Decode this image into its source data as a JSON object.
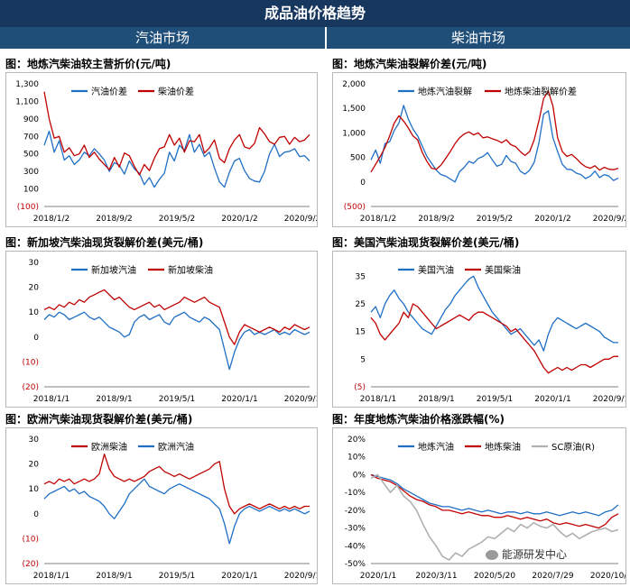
{
  "header": {
    "title": "成品油价格趋势",
    "left": "汽油市场",
    "right": "柴油市场"
  },
  "charts": [
    {
      "title": "图：地炼汽柴油较主营折价(元/吨)",
      "chart_data": {
        "type": "line",
        "ylim": [
          -100,
          1300
        ],
        "yticks": [
          "1,300",
          "1,100",
          "900",
          "700",
          "500",
          "300",
          "100",
          "(100)"
        ],
        "ytick_values": [
          1300,
          1100,
          900,
          700,
          500,
          300,
          100,
          -100
        ],
        "xtick_labels": [
          "2018/1/2",
          "2018/9/2",
          "2019/5/2",
          "2020/1/2",
          "2020/9/2"
        ],
        "legend": "top",
        "series": [
          {
            "name": "汽油价差",
            "color": "#1F6FC5",
            "values": [
              600,
              760,
              520,
              650,
              430,
              480,
              380,
              430,
              520,
              480,
              560,
              500,
              430,
              300,
              400,
              370,
              270,
              420,
              330,
              280,
              150,
              230,
              120,
              210,
              280,
              520,
              420,
              600,
              540,
              720,
              520,
              610,
              470,
              520,
              340,
              180,
              120,
              290,
              420,
              450,
              310,
              220,
              190,
              180,
              300,
              500,
              610,
              470,
              520,
              530,
              560,
              470,
              480,
              420
            ]
          },
          {
            "name": "柴油价差",
            "color": "#C00000",
            "values": [
              1210,
              900,
              680,
              700,
              520,
              570,
              480,
              500,
              600,
              460,
              520,
              440,
              380,
              320,
              460,
              350,
              510,
              480,
              360,
              260,
              380,
              310,
              450,
              560,
              580,
              720,
              600,
              680,
              520,
              650,
              640,
              720,
              510,
              570,
              660,
              450,
              400,
              560,
              660,
              720,
              580,
              560,
              620,
              800,
              730,
              640,
              610,
              690,
              700,
              610,
              690,
              640,
              660,
              720
            ]
          }
        ]
      }
    },
    {
      "title": "图：地炼汽柴油裂解价差(元/吨)",
      "chart_data": {
        "type": "line",
        "ylim": [
          -500,
          2000
        ],
        "yticks": [
          "2,000",
          "1,500",
          "1,000",
          "500",
          "0",
          "(500)"
        ],
        "ytick_values": [
          2000,
          1500,
          1000,
          500,
          0,
          -500
        ],
        "xtick_labels": [
          "2018/1/2",
          "2018/9/2",
          "2019/5/2",
          "2020/1/2",
          "2020/9/2"
        ],
        "legend": "top",
        "series": [
          {
            "name": "地炼汽油裂解",
            "color": "#1F6FC5",
            "values": [
              450,
              650,
              380,
              780,
              820,
              1050,
              1200,
              1560,
              1280,
              1080,
              940,
              730,
              520,
              380,
              240,
              150,
              120,
              60,
              0,
              210,
              300,
              420,
              380,
              480,
              520,
              600,
              450,
              320,
              360,
              540,
              420,
              380,
              220,
              160,
              240,
              400,
              800,
              1380,
              1450,
              900,
              620,
              360,
              260,
              250,
              180,
              150,
              70,
              120,
              220,
              90,
              150,
              120,
              30,
              80
            ]
          },
          {
            "name": "地炼柴油裂解价差",
            "color": "#C00000",
            "values": [
              200,
              360,
              520,
              700,
              940,
              1200,
              1350,
              1240,
              1100,
              940,
              860,
              600,
              420,
              280,
              260,
              340,
              480,
              620,
              780,
              900,
              980,
              1020,
              960,
              1000,
              900,
              920,
              880,
              850,
              800,
              860,
              760,
              720,
              620,
              540,
              620,
              860,
              1250,
              1700,
              1850,
              1550,
              900,
              620,
              520,
              560,
              480,
              380,
              310,
              280,
              330,
              240,
              300,
              260,
              250,
              280
            ]
          }
        ]
      }
    },
    {
      "title": "图：新加坡汽柴油现货裂解价差(美元/桶)",
      "chart_data": {
        "type": "line",
        "ylim": [
          -20,
          30
        ],
        "yticks": [
          "30",
          "20",
          "10",
          "0",
          "(10)",
          "(20)"
        ],
        "ytick_values": [
          30,
          20,
          10,
          0,
          -10,
          -20
        ],
        "xtick_labels": [
          "2018/1/1",
          "2018/9/1",
          "2019/5/1",
          "2020/1/1",
          "2020/9/1"
        ],
        "legend": "top",
        "series": [
          {
            "name": "新加坡汽油",
            "color": "#1F6FC5",
            "values": [
              7,
              9,
              8,
              10,
              9,
              7,
              8,
              9,
              10,
              8,
              7,
              8,
              6,
              4,
              3,
              2,
              0,
              1,
              6,
              8,
              9,
              7,
              8,
              9,
              6,
              5,
              8,
              9,
              10,
              8,
              7,
              6,
              8,
              7,
              5,
              3,
              -5,
              -13,
              -6,
              -1,
              2,
              3,
              1,
              2,
              1,
              2,
              3,
              1,
              2,
              1,
              3,
              2,
              1,
              2
            ]
          },
          {
            "name": "新加坡柴油",
            "color": "#C00000",
            "values": [
              11,
              12,
              11,
              13,
              12,
              14,
              13,
              15,
              14,
              16,
              17,
              18,
              19,
              17,
              15,
              16,
              14,
              12,
              11,
              12,
              13,
              14,
              12,
              13,
              11,
              12,
              13,
              14,
              16,
              15,
              14,
              15,
              16,
              14,
              13,
              12,
              6,
              0,
              -3,
              2,
              5,
              4,
              3,
              2,
              3,
              4,
              3,
              2,
              4,
              3,
              5,
              4,
              3,
              4
            ]
          }
        ]
      }
    },
    {
      "title": "图：美国汽柴油现货裂解价差(美元/桶)",
      "chart_data": {
        "type": "line",
        "ylim": [
          -5,
          40
        ],
        "yticks": [
          "35",
          "25",
          "15",
          "5",
          "(5)"
        ],
        "ytick_values": [
          35,
          25,
          15,
          5,
          -5
        ],
        "xtick_labels": [
          "2018/1/1",
          "2018/9/1",
          "2019/5/1",
          "2020/1/1",
          "2020/9/1"
        ],
        "legend": "top",
        "series": [
          {
            "name": "美国汽油",
            "color": "#1F6FC5",
            "values": [
              22,
              24,
              20,
              25,
              28,
              30,
              27,
              25,
              22,
              20,
              18,
              16,
              15,
              14,
              17,
              20,
              23,
              25,
              28,
              30,
              32,
              34,
              35,
              31,
              28,
              25,
              22,
              20,
              18,
              16,
              14,
              15,
              16,
              14,
              12,
              10,
              12,
              8,
              14,
              18,
              20,
              19,
              18,
              17,
              16,
              17,
              18,
              17,
              16,
              15,
              13,
              12,
              11,
              11
            ]
          },
          {
            "name": "美国柴油",
            "color": "#C00000",
            "values": [
              20,
              18,
              14,
              12,
              14,
              16,
              18,
              22,
              20,
              25,
              24,
              22,
              20,
              18,
              16,
              17,
              18,
              19,
              20,
              21,
              20,
              19,
              21,
              22,
              22,
              21,
              20,
              19,
              18,
              17,
              15,
              16,
              14,
              12,
              10,
              8,
              5,
              2,
              0,
              1,
              2,
              1,
              2,
              1,
              2,
              3,
              3,
              2,
              3,
              4,
              5,
              5,
              6,
              6
            ]
          }
        ]
      }
    },
    {
      "title": "图：欧洲汽柴油现货裂解价差(美元/桶)",
      "chart_data": {
        "type": "line",
        "ylim": [
          -20,
          30
        ],
        "yticks": [
          "30",
          "20",
          "10",
          "0",
          "(10)",
          "(20)"
        ],
        "ytick_values": [
          30,
          20,
          10,
          0,
          -10,
          -20
        ],
        "xtick_labels": [
          "2018/1/1",
          "2018/9/1",
          "2019/5/1",
          "2020/1/1",
          "2020/9/1"
        ],
        "legend": "top",
        "series": [
          {
            "name": "欧洲柴油",
            "color": "#C00000",
            "values": [
              12,
              13,
              12,
              14,
              13,
              14,
              12,
              13,
              14,
              13,
              14,
              16,
              24,
              18,
              15,
              14,
              13,
              14,
              13,
              14,
              15,
              17,
              18,
              19,
              17,
              16,
              15,
              16,
              15,
              14,
              15,
              16,
              17,
              18,
              20,
              21,
              10,
              3,
              0,
              2,
              3,
              4,
              3,
              2,
              3,
              4,
              3,
              2,
              3,
              2,
              3,
              2,
              3,
              3
            ]
          },
          {
            "name": "欧洲汽油",
            "color": "#1F6FC5",
            "values": [
              6,
              8,
              9,
              10,
              11,
              9,
              10,
              8,
              9,
              7,
              6,
              5,
              3,
              0,
              -2,
              1,
              4,
              8,
              10,
              12,
              14,
              11,
              10,
              9,
              8,
              10,
              11,
              12,
              11,
              10,
              9,
              8,
              7,
              6,
              4,
              2,
              -4,
              -12,
              -5,
              0,
              2,
              3,
              2,
              1,
              2,
              3,
              2,
              1,
              2,
              1,
              2,
              1,
              0,
              1
            ]
          }
        ]
      }
    },
    {
      "title": "图：年度地炼汽柴油价格涨跌幅(%)",
      "chart_data": {
        "type": "line",
        "ylim": [
          -50,
          20
        ],
        "yticks": [
          "20%",
          "10%",
          "0%",
          "-10%",
          "-20%",
          "-30%",
          "-40%",
          "-50%"
        ],
        "ytick_values": [
          20,
          10,
          0,
          -10,
          -20,
          -30,
          -40,
          -50
        ],
        "xtick_labels": [
          "2020/1/1",
          "2020/3/11",
          "2020/5/20",
          "2020/7/29",
          "2020/10/7"
        ],
        "legend": "top",
        "series": [
          {
            "name": "地炼汽油",
            "color": "#1F6FC5",
            "values": [
              0,
              -1,
              -2,
              -3,
              -5,
              -8,
              -10,
              -12,
              -14,
              -16,
              -17,
              -18,
              -18,
              -19,
              -20,
              -19,
              -20,
              -21,
              -20,
              -21,
              -22,
              -21,
              -21,
              -22,
              -21,
              -22,
              -22,
              -21,
              -22,
              -23,
              -22,
              -21,
              -22,
              -21,
              -22,
              -23,
              -21,
              -20,
              -17
            ]
          },
          {
            "name": "地炼柴油",
            "color": "#C00000",
            "values": [
              0,
              -2,
              -3,
              -4,
              -6,
              -9,
              -12,
              -14,
              -15,
              -17,
              -18,
              -20,
              -20,
              -21,
              -22,
              -21,
              -22,
              -23,
              -23,
              -24,
              -24,
              -23,
              -24,
              -25,
              -24,
              -25,
              -26,
              -25,
              -27,
              -28,
              -27,
              -28,
              -29,
              -28,
              -29,
              -30,
              -28,
              -24,
              -22
            ]
          },
          {
            "name": "SC原油(R)",
            "color": "#B0B0B0",
            "values": [
              -2,
              0,
              -5,
              -10,
              -6,
              -12,
              -15,
              -20,
              -28,
              -35,
              -40,
              -46,
              -48,
              -44,
              -46,
              -42,
              -40,
              -38,
              -35,
              -36,
              -33,
              -30,
              -32,
              -28,
              -30,
              -27,
              -29,
              -30,
              -28,
              -32,
              -35,
              -33,
              -36,
              -34,
              -32,
              -31,
              -30,
              -32,
              -31
            ]
          }
        ]
      }
    }
  ],
  "watermark": {
    "brand": "能源研发中心"
  }
}
